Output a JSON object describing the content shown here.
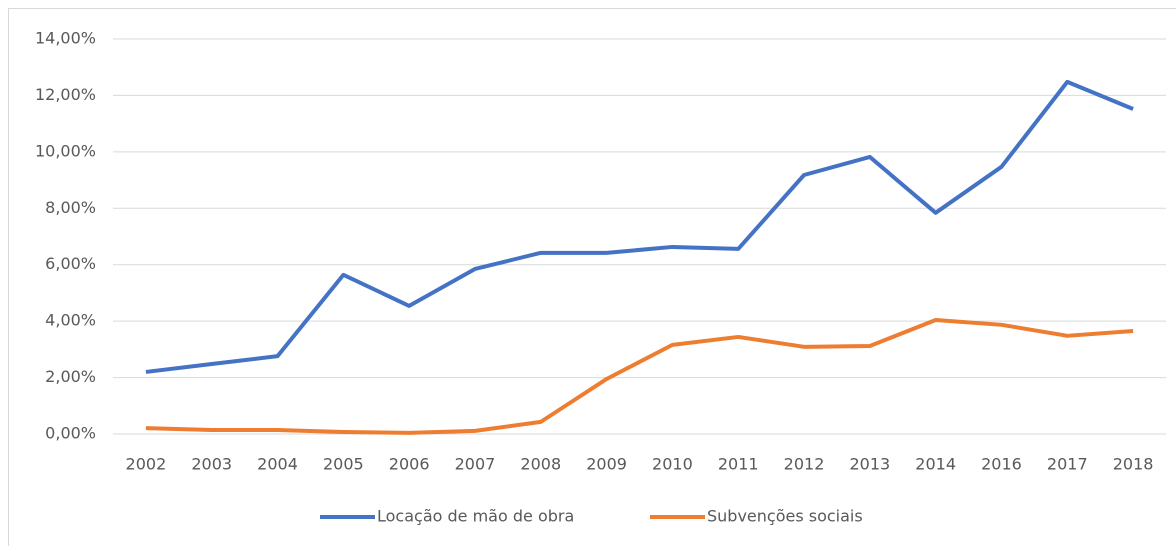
{
  "chart_data": {
    "type": "line",
    "categories": [
      "2002",
      "2003",
      "2004",
      "2005",
      "2006",
      "2007",
      "2008",
      "2009",
      "2010",
      "2011",
      "2012",
      "2013",
      "2014",
      "2016",
      "2017",
      "2018"
    ],
    "series": [
      {
        "name": "Locação de mão de obra",
        "color": "#4472c4",
        "values": [
          2.2,
          2.48,
          2.76,
          5.64,
          4.54,
          5.85,
          6.42,
          6.42,
          6.63,
          6.56,
          9.18,
          9.82,
          7.84,
          9.47,
          12.48,
          11.52
        ]
      },
      {
        "name": "Subvenções sociais",
        "color": "#ed7d31",
        "values": [
          0.21,
          0.14,
          0.14,
          0.07,
          0.04,
          0.11,
          0.43,
          1.95,
          3.16,
          3.44,
          3.09,
          3.12,
          4.04,
          3.87,
          3.48,
          3.65
        ]
      }
    ],
    "ylim": [
      0,
      14
    ],
    "yticks": [
      {
        "value": 0,
        "label": "0,00%"
      },
      {
        "value": 2,
        "label": "2,00%"
      },
      {
        "value": 4,
        "label": "4,00%"
      },
      {
        "value": 6,
        "label": "6,00%"
      },
      {
        "value": 8,
        "label": "8,00%"
      },
      {
        "value": 10,
        "label": "10,00%"
      },
      {
        "value": 12,
        "label": "12,00%"
      },
      {
        "value": 14,
        "label": "14,00%"
      }
    ],
    "grid": true,
    "legend": "bottom"
  }
}
